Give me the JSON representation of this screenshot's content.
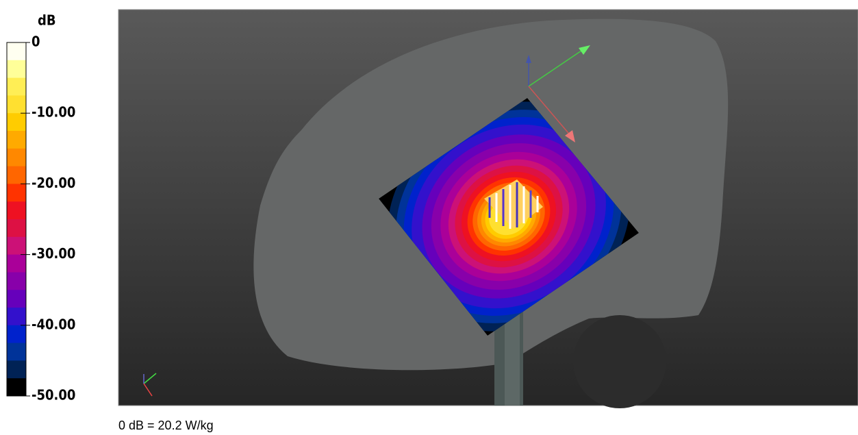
{
  "colorbar": {
    "unit": "dB",
    "range": [
      -50,
      0
    ],
    "ticks": [
      0,
      {
        "value": -10,
        "label": "-10.00"
      },
      {
        "value": -20,
        "label": "-20.00"
      },
      {
        "value": -30,
        "label": "-30.00"
      },
      {
        "value": -40,
        "label": "-40.00"
      },
      {
        "value": -50,
        "label": "-50.00"
      }
    ],
    "colors": [
      "#fffff0",
      "#ffff99",
      "#ffee55",
      "#ffe030",
      "#ffcc00",
      "#ffaa00",
      "#ff8800",
      "#ff6600",
      "#ff3300",
      "#ee1122",
      "#dd1144",
      "#cc1177",
      "#aa0099",
      "#8800aa",
      "#6600bb",
      "#3311cc",
      "#0022cc",
      "#003399",
      "#002255",
      "#000000"
    ]
  },
  "caption": "0 dB = 20.2 W/kg"
}
